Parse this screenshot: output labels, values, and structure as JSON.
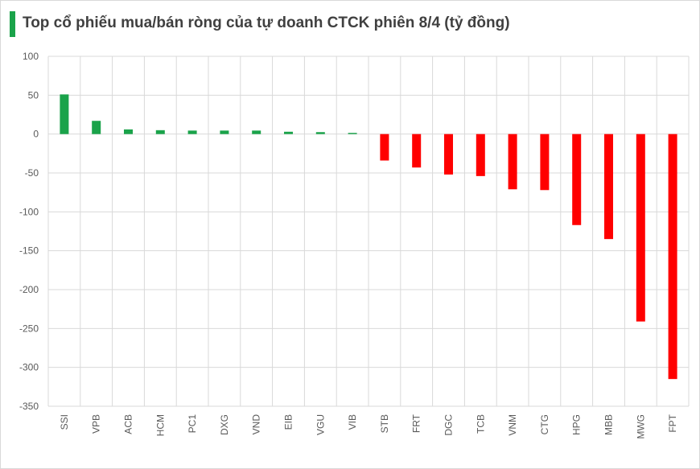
{
  "title": "Top cổ phiếu mua/bán ròng của tự doanh CTCK phiên 8/4 (tỷ đồng)",
  "colors": {
    "positive": "#1aa34a",
    "negative": "#ff0000",
    "grid": "#d9d9d9",
    "axis_text": "#595959",
    "title_bar": "#1aa34a"
  },
  "chart_data": {
    "type": "bar",
    "title": "Top cổ phiếu mua/bán ròng của tự doanh CTCK phiên 8/4 (tỷ đồng)",
    "xlabel": "",
    "ylabel": "",
    "categories": [
      "SSI",
      "VPB",
      "ACB",
      "HCM",
      "PC1",
      "DXG",
      "VND",
      "EIB",
      "VGU",
      "VIB",
      "STB",
      "FRT",
      "DGC",
      "TCB",
      "VNM",
      "CTG",
      "HPG",
      "MBB",
      "MWG",
      "FPT"
    ],
    "values": [
      51,
      17,
      6,
      5,
      4.5,
      4.5,
      4.5,
      3,
      2.5,
      1.5,
      -34,
      -43,
      -52,
      -54,
      -71,
      -72,
      -117,
      -135,
      -241,
      -315
    ],
    "ylim": [
      -350,
      100
    ],
    "yticks": [
      100,
      50,
      0,
      -50,
      -100,
      -150,
      -200,
      -250,
      -300,
      -350
    ],
    "grid": true,
    "legend": "none"
  }
}
